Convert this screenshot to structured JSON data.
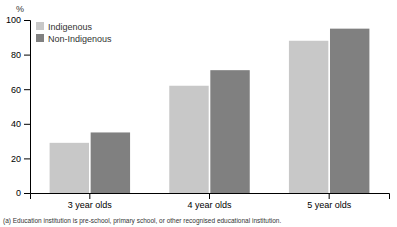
{
  "chart_data": {
    "type": "bar",
    "categories": [
      "3 year olds",
      "4 year olds",
      "5 year olds"
    ],
    "series": [
      {
        "name": "Indigenous",
        "color": "#c8c8c8",
        "values": [
          29,
          62,
          88
        ]
      },
      {
        "name": "Non-Indigenous",
        "color": "#808080",
        "values": [
          35,
          71,
          95
        ]
      }
    ],
    "ylabel": "%",
    "ylim": [
      0,
      100
    ],
    "yticks": [
      0,
      20,
      40,
      60,
      80,
      100
    ],
    "grid": false,
    "legend": "upper left",
    "annotations": [
      "(a) Education institution is pre-school, primary school, or other recognised educational institution."
    ]
  }
}
